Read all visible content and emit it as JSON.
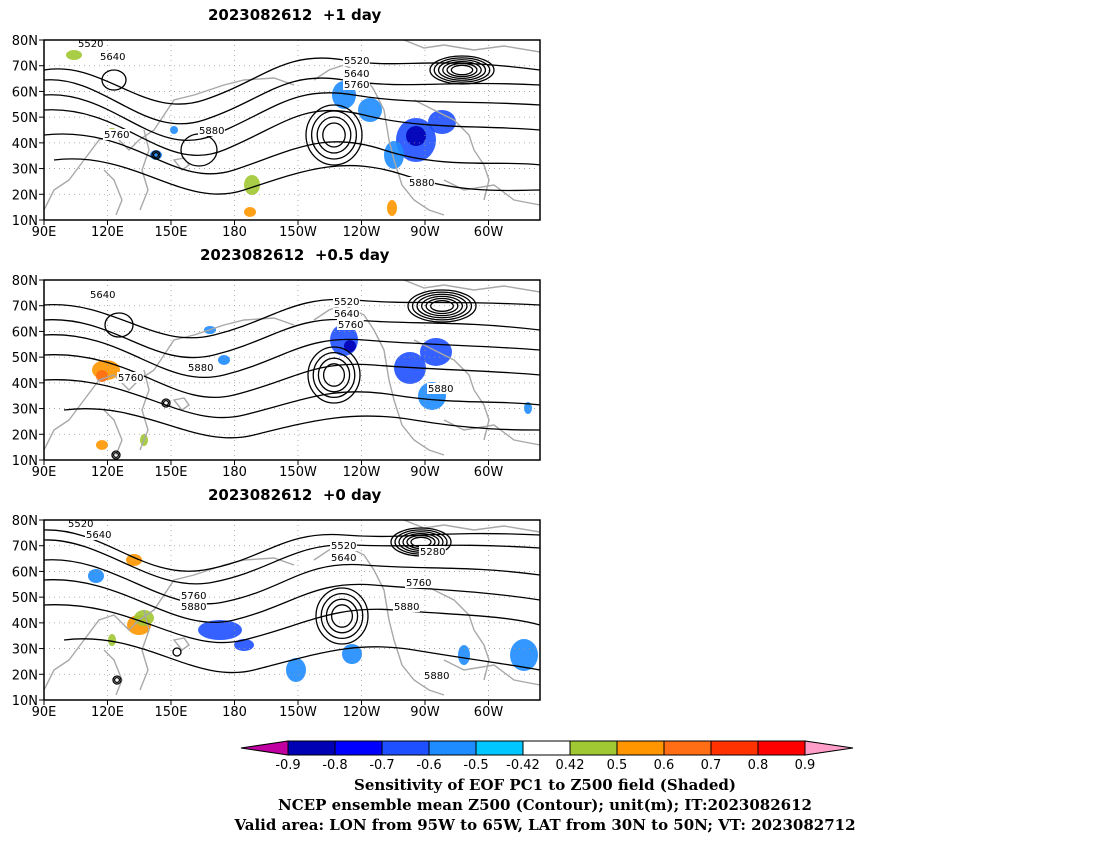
{
  "panels": [
    {
      "title": "2023082612  +1 day",
      "contour_labels": [
        "5520",
        "5640",
        "5760",
        "5880",
        "5520",
        "5640",
        "5760",
        "5880"
      ]
    },
    {
      "title": "2023082612  +0.5 day",
      "contour_labels": [
        "5640",
        "5760",
        "5880",
        "5520",
        "5640",
        "5760",
        "5880"
      ]
    },
    {
      "title": "2023082612  +0 day",
      "contour_labels": [
        "5520",
        "5640",
        "5760",
        "5880",
        "5520",
        "5640",
        "5760",
        "5880",
        "5280",
        "5880"
      ]
    }
  ],
  "axes": {
    "lat_ticks": [
      "80N",
      "70N",
      "60N",
      "50N",
      "40N",
      "30N",
      "20N",
      "10N"
    ],
    "lon_ticks": [
      "90E",
      "120E",
      "150E",
      "180",
      "150W",
      "120W",
      "90W",
      "60W"
    ]
  },
  "colorbar": {
    "ticks": [
      "-0.9",
      "-0.8",
      "-0.7",
      "-0.6",
      "-0.5",
      "-0.42",
      "0.42",
      "0.5",
      "0.6",
      "0.7",
      "0.8",
      "0.9"
    ],
    "colors": [
      "#c000a0",
      "#0000b4",
      "#0000ff",
      "#1e50ff",
      "#1e8cff",
      "#00c8ff",
      "#ffffff",
      "#a0c832",
      "#ff9600",
      "#ff6e14",
      "#ff3200",
      "#ff0000",
      "#ff9ec8"
    ]
  },
  "footer": {
    "line1": "Sensitivity of EOF PC1 to Z500 field (Shaded)",
    "line2": "NCEP ensemble mean Z500 (Contour); unit(m); IT:2023082612",
    "line3": "Valid area: LON from 95W to 65W, LAT from 30N to 50N; VT: 2023082712"
  }
}
